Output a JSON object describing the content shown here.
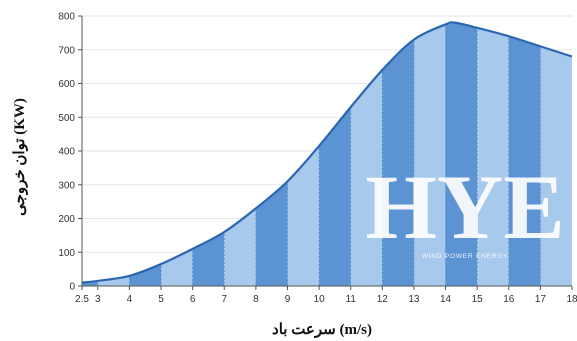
{
  "chart_data": {
    "type": "area",
    "xlabel": "سرعت باد (m/s)",
    "ylabel": "توان خروجی (KW)",
    "x_ticks": [
      "2.5",
      "3",
      "4",
      "5",
      "6",
      "7",
      "8",
      "9",
      "10",
      "11",
      "12",
      "13",
      "14",
      "15",
      "16",
      "17",
      "18"
    ],
    "y_ticks": [
      "0",
      "100",
      "200",
      "300",
      "400",
      "500",
      "600",
      "700",
      "800"
    ],
    "xlim": [
      2.5,
      18
    ],
    "ylim": [
      0,
      800
    ],
    "grid": "horizontal",
    "series": [
      {
        "x": [
          2.5,
          3,
          4,
          5,
          6,
          7,
          8,
          9,
          10,
          11,
          12,
          13,
          14,
          14.3,
          15,
          16,
          17,
          18
        ],
        "y": [
          10,
          15,
          30,
          65,
          110,
          160,
          230,
          310,
          415,
          530,
          640,
          730,
          775,
          780,
          765,
          740,
          710,
          680
        ]
      }
    ]
  },
  "watermark": {
    "logo_text": "HYE",
    "tagline": "WIND POWER ENERGY"
  },
  "colors": {
    "fill_dark": "#5b93d3",
    "fill_light": "#a7c9ec",
    "line": "#2b66b1",
    "grid": "#e6e6e6",
    "axis": "#555555"
  }
}
